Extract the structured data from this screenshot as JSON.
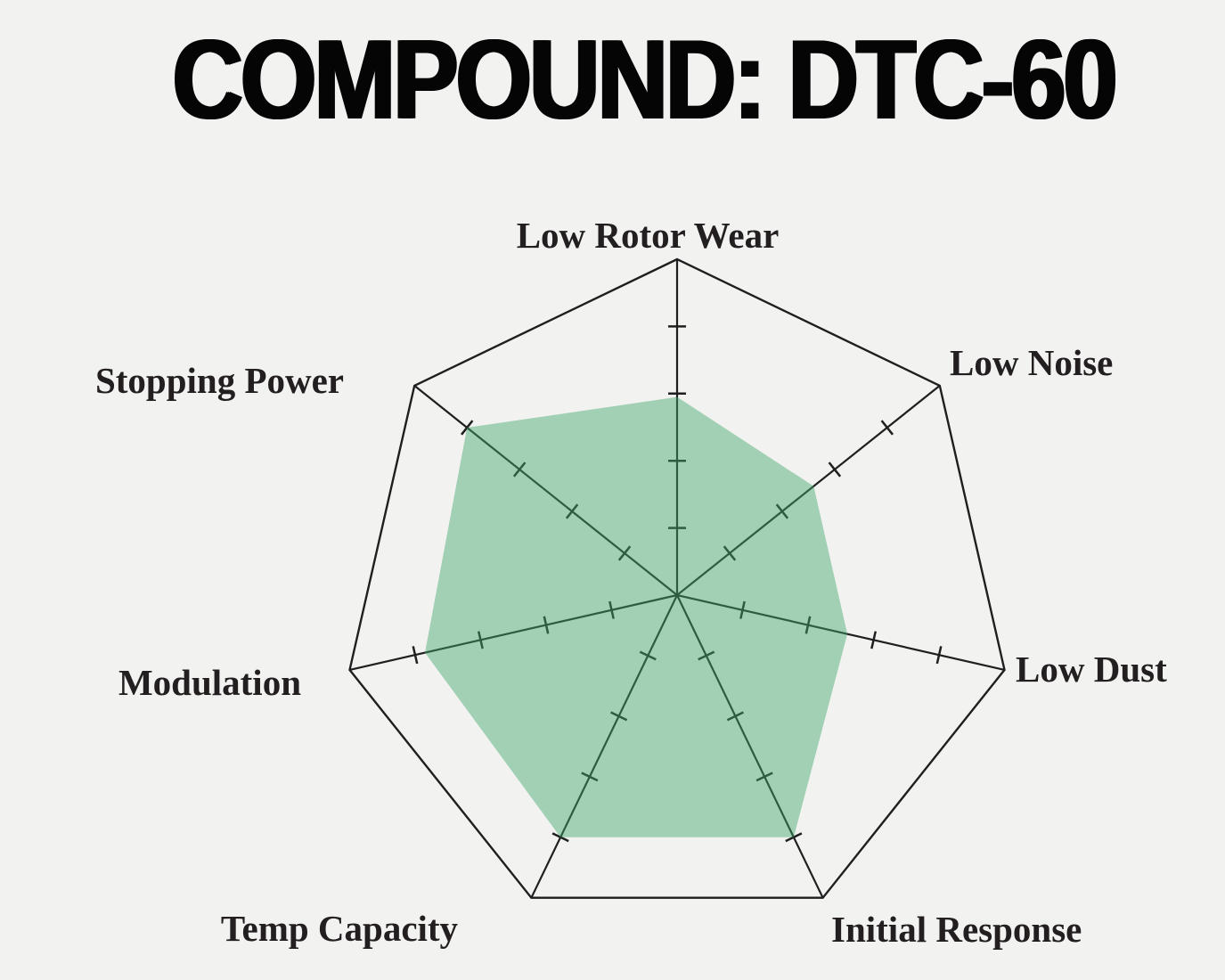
{
  "title": "COMPOUND: DTC-60",
  "colors": {
    "background": "#f2f2f1",
    "grid_line": "#1f1f1f",
    "data_fill": "#3da66a",
    "data_fill_opacity": 0.45,
    "label_text": "#231f20",
    "title_text": "#050505"
  },
  "chart_data": {
    "type": "radar",
    "title": "COMPOUND: DTC-60",
    "categories": [
      "Low Rotor Wear",
      "Low Noise",
      "Low Dust",
      "Initial Response",
      "Temp Capacity",
      "Modulation",
      "Stopping Power"
    ],
    "series": [
      {
        "name": "DTC-60",
        "values": [
          5.9,
          5.2,
          5.2,
          8.0,
          8.0,
          7.7,
          8.0
        ]
      }
    ],
    "axis_range": [
      0,
      10
    ],
    "tick_values": [
      2,
      4,
      6,
      8
    ],
    "num_axes": 7,
    "start_angle_deg": 90,
    "winding": "clockwise",
    "grid_style": "spokes with perpendicular tick dashes, single outer heptagon ring, no concentric rings",
    "legend": "none"
  }
}
